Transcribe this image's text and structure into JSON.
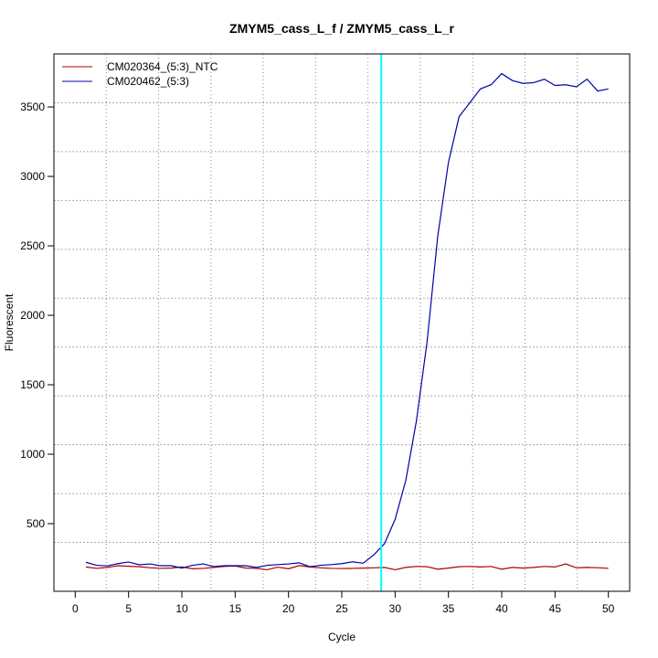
{
  "chart_data": {
    "type": "line",
    "title": "ZMYM5_cass_L_f / ZMYM5_cass_L_r",
    "xlabel": "Cycle",
    "ylabel": "Fluorescent",
    "xlim": [
      -2,
      52
    ],
    "ylim": [
      13,
      3882
    ],
    "xticks": [
      0,
      5,
      10,
      15,
      20,
      25,
      30,
      35,
      40,
      45,
      50
    ],
    "yticks": [
      500,
      1000,
      1500,
      2000,
      2500,
      3000,
      3500
    ],
    "grid": true,
    "legend_position": "top-left",
    "threshold_cycle": 28.7,
    "threshold_color": "#00ffff",
    "series": [
      {
        "name": "CM020364_(5:3)_NTC",
        "color": "#aa0000",
        "x": [
          1,
          2,
          3,
          4,
          5,
          6,
          7,
          8,
          9,
          10,
          11,
          12,
          13,
          14,
          15,
          16,
          17,
          18,
          19,
          20,
          21,
          22,
          23,
          24,
          25,
          26,
          27,
          28,
          29,
          30,
          31,
          32,
          33,
          34,
          35,
          36,
          37,
          38,
          39,
          40,
          41,
          42,
          43,
          44,
          45,
          46,
          47,
          48,
          49,
          50
        ],
        "values": [
          188,
          178,
          185,
          197,
          193,
          190,
          183,
          178,
          180,
          188,
          175,
          178,
          185,
          192,
          195,
          180,
          178,
          168,
          187,
          175,
          198,
          188,
          182,
          178,
          177,
          178,
          180,
          182,
          185,
          168,
          185,
          192,
          190,
          172,
          180,
          190,
          192,
          188,
          192,
          172,
          185,
          180,
          185,
          192,
          188,
          210,
          182,
          185,
          183,
          178
        ]
      },
      {
        "name": "CM020462_(5:3)",
        "color": "#0000aa",
        "x": [
          1,
          2,
          3,
          4,
          5,
          6,
          7,
          8,
          9,
          10,
          11,
          12,
          13,
          14,
          15,
          16,
          17,
          18,
          19,
          20,
          21,
          22,
          23,
          24,
          25,
          26,
          27,
          28,
          29,
          30,
          31,
          32,
          33,
          34,
          35,
          36,
          37,
          38,
          39,
          40,
          41,
          42,
          43,
          44,
          45,
          46,
          47,
          48,
          49,
          50
        ],
        "values": [
          222,
          200,
          196,
          212,
          224,
          204,
          210,
          197,
          197,
          180,
          200,
          210,
          191,
          197,
          197,
          197,
          184,
          200,
          205,
          210,
          218,
          190,
          200,
          205,
          212,
          225,
          215,
          275,
          355,
          530,
          810,
          1240,
          1810,
          2570,
          3100,
          3430,
          3530,
          3630,
          3660,
          3740,
          3690,
          3670,
          3675,
          3700,
          3655,
          3660,
          3645,
          3700,
          3615,
          3630
        ]
      }
    ]
  }
}
